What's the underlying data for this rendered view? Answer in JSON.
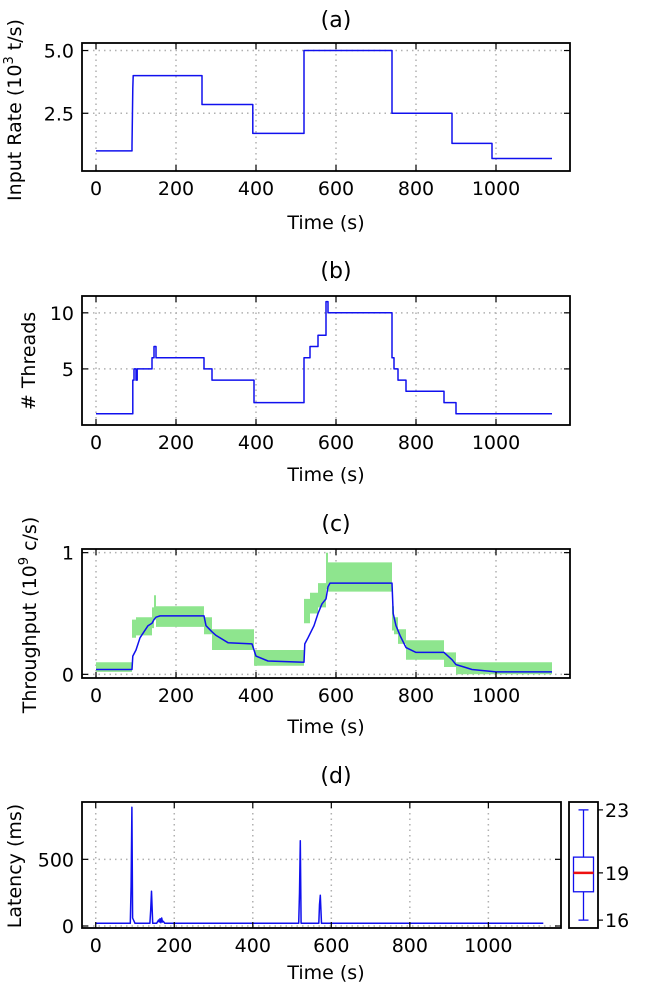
{
  "chart_data": [
    {
      "type": "line",
      "title": "(a)",
      "xlabel": "Time (s)",
      "ylabel": "Input Rate (10³ t/s)",
      "ylabel_main": "Input Rate (10",
      "ylabel_sup": "3",
      "ylabel_end": " t/s)",
      "xlim": [
        -35,
        1185
      ],
      "ylim": [
        0.2,
        5.3
      ],
      "xticks": [
        0,
        200,
        400,
        600,
        800,
        1000
      ],
      "xtick_labels": [
        "0",
        "200",
        "400",
        "600",
        "800",
        "1000"
      ],
      "yticks": [
        2.5,
        5.0
      ],
      "ytick_labels": [
        "2.5",
        "5.0"
      ],
      "grid": true,
      "series": [
        {
          "name": "input rate",
          "x": [
            0,
            90,
            90,
            92,
            93,
            265,
            265,
            392,
            392,
            520,
            520,
            740,
            740,
            890,
            890,
            990,
            990,
            1140
          ],
          "y": [
            1.0,
            1.0,
            1.2,
            3.5,
            4.0,
            4.0,
            2.85,
            2.85,
            1.7,
            1.7,
            5.0,
            5.0,
            2.5,
            2.5,
            1.3,
            1.3,
            0.7,
            0.7
          ]
        }
      ]
    },
    {
      "type": "line",
      "title": "(b)",
      "xlabel": "Time (s)",
      "ylabel": "# Threads",
      "xlim": [
        -35,
        1185
      ],
      "ylim": [
        0,
        11.5
      ],
      "xticks": [
        0,
        200,
        400,
        600,
        800,
        1000
      ],
      "xtick_labels": [
        "0",
        "200",
        "400",
        "600",
        "800",
        "1000"
      ],
      "yticks": [
        5,
        10
      ],
      "ytick_labels": [
        "5",
        "10"
      ],
      "grid": true,
      "series": [
        {
          "name": "threads",
          "x": [
            0,
            92,
            92,
            95,
            95,
            100,
            100,
            103,
            103,
            140,
            140,
            145,
            145,
            150,
            150,
            270,
            270,
            290,
            290,
            395,
            395,
            520,
            520,
            535,
            535,
            555,
            555,
            575,
            575,
            580,
            580,
            740,
            740,
            745,
            745,
            755,
            755,
            775,
            775,
            870,
            870,
            900,
            900,
            920,
            920,
            1140
          ],
          "y": [
            1,
            1,
            4,
            4,
            5,
            5,
            4,
            4,
            5,
            5,
            6,
            6,
            7,
            7,
            6,
            6,
            5,
            5,
            4,
            4,
            2,
            2,
            6,
            6,
            7,
            7,
            8,
            8,
            11,
            11,
            10,
            10,
            6,
            6,
            5,
            5,
            4,
            4,
            3,
            3,
            2,
            2,
            1,
            1,
            1,
            1
          ]
        }
      ]
    },
    {
      "type": "area",
      "title": "(c)",
      "xlabel": "Time (s)",
      "ylabel": "Throughput (10⁹ c/s)",
      "ylabel_main": "Throughput (10",
      "ylabel_sup": "9",
      "ylabel_end": " c/s)",
      "xlim": [
        -35,
        1185
      ],
      "ylim": [
        -0.03,
        1.03
      ],
      "xticks": [
        0,
        200,
        400,
        600,
        800,
        1000
      ],
      "xtick_labels": [
        "0",
        "200",
        "400",
        "600",
        "800",
        "1000"
      ],
      "yticks": [
        0,
        1
      ],
      "ytick_labels": [
        "0",
        "1"
      ],
      "grid": true,
      "band": {
        "x": [
          0,
          90,
          90,
          100,
          100,
          140,
          140,
          145,
          145,
          150,
          150,
          270,
          270,
          290,
          290,
          395,
          395,
          520,
          520,
          535,
          535,
          555,
          555,
          575,
          575,
          580,
          580,
          740,
          740,
          745,
          745,
          755,
          755,
          775,
          775,
          870,
          870,
          900,
          900,
          920,
          920,
          1140
        ],
        "upper": [
          0.1,
          0.1,
          0.45,
          0.45,
          0.47,
          0.47,
          0.55,
          0.55,
          0.65,
          0.65,
          0.56,
          0.56,
          0.47,
          0.47,
          0.37,
          0.37,
          0.2,
          0.2,
          0.62,
          0.62,
          0.67,
          0.67,
          0.75,
          0.75,
          1.0,
          1.0,
          0.92,
          0.92,
          0.56,
          0.56,
          0.47,
          0.47,
          0.37,
          0.37,
          0.28,
          0.28,
          0.18,
          0.18,
          0.1,
          0.1,
          0.1,
          0.1
        ],
        "lower": [
          0.02,
          0.02,
          0.3,
          0.3,
          0.32,
          0.32,
          0.38,
          0.38,
          0.45,
          0.45,
          0.39,
          0.39,
          0.33,
          0.33,
          0.2,
          0.2,
          0.07,
          0.07,
          0.42,
          0.42,
          0.5,
          0.5,
          0.55,
          0.55,
          0.7,
          0.7,
          0.68,
          0.68,
          0.36,
          0.36,
          0.33,
          0.33,
          0.25,
          0.25,
          0.12,
          0.12,
          0.06,
          0.06,
          0.0,
          0.0,
          0.0,
          0.0
        ]
      },
      "series": [
        {
          "name": "throughput",
          "x": [
            0,
            90,
            92,
            100,
            110,
            130,
            140,
            145,
            150,
            160,
            270,
            275,
            290,
            300,
            330,
            390,
            395,
            400,
            430,
            520,
            522,
            530,
            545,
            555,
            565,
            575,
            580,
            585,
            740,
            743,
            750,
            760,
            775,
            800,
            870,
            890,
            900,
            920,
            940,
            1000,
            1140
          ],
          "y": [
            0.04,
            0.04,
            0.15,
            0.2,
            0.3,
            0.4,
            0.42,
            0.45,
            0.47,
            0.48,
            0.48,
            0.4,
            0.35,
            0.32,
            0.26,
            0.25,
            0.2,
            0.15,
            0.11,
            0.1,
            0.25,
            0.3,
            0.4,
            0.5,
            0.58,
            0.62,
            0.72,
            0.75,
            0.75,
            0.5,
            0.4,
            0.32,
            0.22,
            0.18,
            0.18,
            0.12,
            0.08,
            0.06,
            0.04,
            0.02,
            0.02
          ]
        }
      ]
    },
    {
      "type": "line",
      "title": "(d)",
      "xlabel": "Time (s)",
      "ylabel": "Latency (ms)",
      "xlim": [
        -35,
        1185
      ],
      "ylim": [
        -15,
        930
      ],
      "xticks": [
        0,
        200,
        400,
        600,
        800,
        1000
      ],
      "xtick_labels": [
        "0",
        "200",
        "400",
        "600",
        "800",
        "1000"
      ],
      "yticks": [
        0,
        500
      ],
      "ytick_labels": [
        "0",
        "500"
      ],
      "grid": true,
      "series": [
        {
          "name": "latency",
          "x": [
            0,
            88,
            90,
            92,
            94,
            100,
            138,
            140,
            142,
            145,
            155,
            160,
            162,
            164,
            166,
            168,
            170,
            172,
            176,
            200,
            300,
            517,
            519,
            521,
            523,
            530,
            568,
            570,
            572,
            575,
            600,
            800,
            1000,
            1140
          ],
          "y": [
            20,
            20,
            300,
            890,
            60,
            20,
            20,
            120,
            260,
            20,
            20,
            45,
            30,
            55,
            25,
            60,
            30,
            35,
            20,
            20,
            20,
            20,
            250,
            640,
            20,
            20,
            20,
            160,
            230,
            20,
            20,
            20,
            20,
            20
          ]
        }
      ],
      "boxplot": {
        "min": 16,
        "q1": 17.8,
        "median": 19,
        "q3": 20,
        "max": 23,
        "range": [
          15.5,
          23.5
        ],
        "ticks": [
          16,
          19,
          23
        ],
        "tick_labels": [
          "16",
          "19",
          "23"
        ]
      }
    }
  ]
}
